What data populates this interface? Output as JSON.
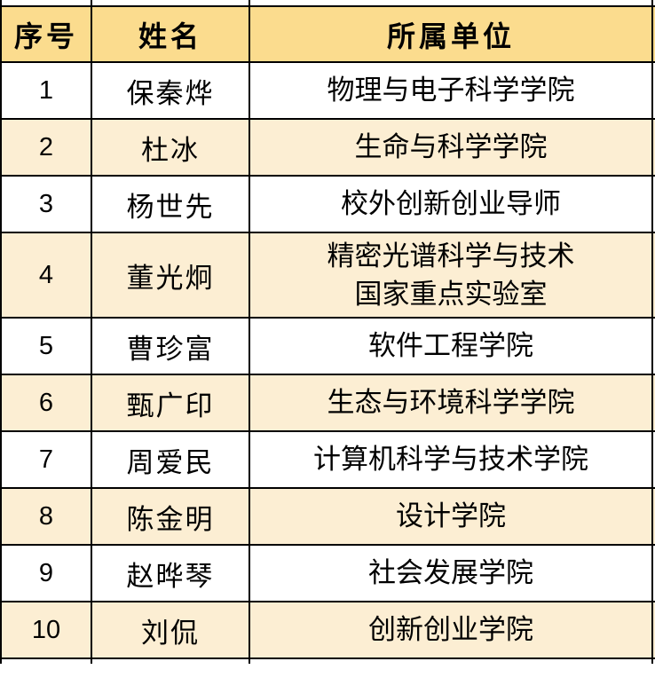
{
  "table": {
    "columns": [
      {
        "key": "index",
        "label": "序号"
      },
      {
        "key": "name",
        "label": "姓名"
      },
      {
        "key": "unit",
        "label": "所属单位"
      }
    ],
    "rows": [
      {
        "index": "1",
        "name": "保秦烨",
        "unit": "物理与电子科学学院"
      },
      {
        "index": "2",
        "name": "杜冰",
        "unit": "生命与科学学院"
      },
      {
        "index": "3",
        "name": "杨世先",
        "unit": "校外创新创业导师"
      },
      {
        "index": "4",
        "name": "董光炯",
        "unit": "精密光谱科学与技术国家重点实验室",
        "unit_lines": [
          "精密光谱科学与技术",
          "国家重点实验室"
        ]
      },
      {
        "index": "5",
        "name": "曹珍富",
        "unit": "软件工程学院"
      },
      {
        "index": "6",
        "name": "甄广印",
        "unit": "生态与环境科学学院"
      },
      {
        "index": "7",
        "name": "周爱民",
        "unit": "计算机科学与技术学院"
      },
      {
        "index": "8",
        "name": "陈金明",
        "unit": "设计学院"
      },
      {
        "index": "9",
        "name": "赵晔琴",
        "unit": "社会发展学院"
      },
      {
        "index": "10",
        "name": "刘侃",
        "unit": "创新创业学院"
      }
    ],
    "colors": {
      "header_bg": "#fbdc8e",
      "row_bg": "#ffffff",
      "row_alt_bg": "#fceed3",
      "border": "#000000",
      "text": "#000000"
    }
  }
}
